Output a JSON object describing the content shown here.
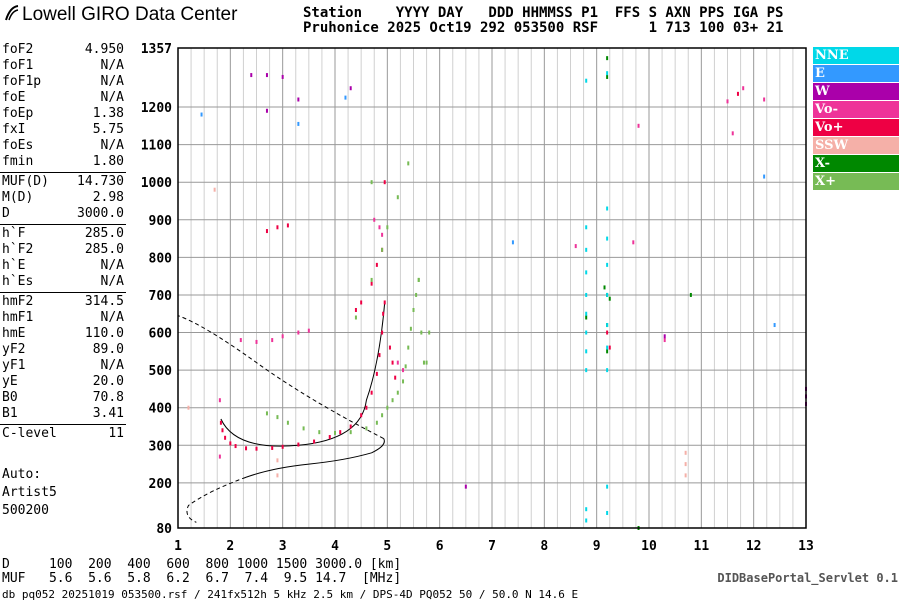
{
  "app": {
    "title": "Lowell GIRO Data Center",
    "portal": "DIDBasePortal_Servlet 0.1"
  },
  "header": {
    "line1": "Station    YYYY DAY   DDD HHMMSS P1  FFS S AXN PPS IGA PS",
    "line2": "Pruhonice 2025 Oct19 292 053500 RSF      1 713 100 03+ 21"
  },
  "params": [
    {
      "key": "foF2",
      "value": "4.950"
    },
    {
      "key": "foF1",
      "value": "N/A"
    },
    {
      "key": "foF1p",
      "value": "N/A"
    },
    {
      "key": "foE",
      "value": "N/A"
    },
    {
      "key": "foEp",
      "value": "1.38"
    },
    {
      "key": "fxI",
      "value": "5.75"
    },
    {
      "key": "foEs",
      "value": "N/A"
    },
    {
      "key": "fmin",
      "value": "1.80"
    },
    {
      "key": "MUF(D)",
      "value": "14.730"
    },
    {
      "key": "M(D)",
      "value": "2.98"
    },
    {
      "key": "D",
      "value": "3000.0"
    },
    {
      "key": "h`F",
      "value": "285.0"
    },
    {
      "key": "h`F2",
      "value": "285.0"
    },
    {
      "key": "h`E",
      "value": "N/A"
    },
    {
      "key": "h`Es",
      "value": "N/A"
    },
    {
      "key": "hmF2",
      "value": "314.5"
    },
    {
      "key": "hmF1",
      "value": "N/A"
    },
    {
      "key": "hmE",
      "value": "110.0"
    },
    {
      "key": "yF2",
      "value": "89.0"
    },
    {
      "key": "yF1",
      "value": "N/A"
    },
    {
      "key": "yE",
      "value": "20.0"
    },
    {
      "key": "B0",
      "value": "70.8"
    },
    {
      "key": "B1",
      "value": "3.41"
    },
    {
      "key": "C-level",
      "value": "11"
    }
  ],
  "auto": {
    "line1": "Auto:",
    "line2": "Artist5",
    "line3": "500200"
  },
  "legend": [
    {
      "label": "NNE",
      "color": "#00d8e8"
    },
    {
      "label": "E",
      "color": "#3399ff"
    },
    {
      "label": "W",
      "color": "#aa00aa"
    },
    {
      "label": "Vo-",
      "color": "#ee3399"
    },
    {
      "label": "Vo+",
      "color": "#ee0044"
    },
    {
      "label": "SSW",
      "color": "#f5b0a8"
    },
    {
      "label": "X-",
      "color": "#008800"
    },
    {
      "label": "X+",
      "color": "#77bb55"
    }
  ],
  "dmuf": {
    "line1": "D     100  200  400  600  800 1000 1500 3000.0 [km]",
    "line2": "MUF   5.6  5.6  5.8  6.2  6.7  7.4  9.5 14.7  [MHz]"
  },
  "footer": "db pq052 20251019 053500.rsf / 241fx512h 5 kHz 2.5 km / DPS-4D PQ052 50 / 50.0 N 14.6 E",
  "chart_data": {
    "type": "scatter",
    "xlim": [
      1,
      13
    ],
    "ylim": [
      80,
      1357
    ],
    "x_ticks": [
      1,
      2,
      3,
      4,
      5,
      6,
      7,
      8,
      9,
      10,
      11,
      12,
      13
    ],
    "y_ticks": [
      80,
      200,
      300,
      400,
      500,
      600,
      700,
      800,
      900,
      1000,
      1100,
      1200,
      1357
    ],
    "grid": true,
    "series": [
      {
        "name": "Vo+",
        "color": "#ee0044",
        "points": [
          [
            1.82,
            360
          ],
          [
            1.85,
            340
          ],
          [
            1.9,
            320
          ],
          [
            2.0,
            305
          ],
          [
            2.1,
            298
          ],
          [
            2.3,
            292
          ],
          [
            2.5,
            291
          ],
          [
            2.8,
            293
          ],
          [
            3.0,
            296
          ],
          [
            3.3,
            302
          ],
          [
            3.6,
            310
          ],
          [
            3.9,
            322
          ],
          [
            4.1,
            335
          ],
          [
            4.3,
            350
          ],
          [
            4.5,
            380
          ],
          [
            4.6,
            400
          ],
          [
            4.7,
            440
          ],
          [
            4.8,
            490
          ],
          [
            4.85,
            540
          ],
          [
            4.9,
            600
          ],
          [
            4.92,
            650
          ],
          [
            4.95,
            680
          ],
          [
            5.05,
            560
          ],
          [
            5.1,
            520
          ],
          [
            5.15,
            480
          ],
          [
            4.95,
            1000
          ],
          [
            2.7,
            870
          ],
          [
            2.9,
            880
          ],
          [
            3.1,
            885
          ],
          [
            4.4,
            660
          ],
          [
            4.5,
            680
          ],
          [
            4.7,
            730
          ],
          [
            4.8,
            780
          ],
          [
            4.9,
            820
          ],
          [
            9.2,
            600
          ],
          [
            9.25,
            560
          ],
          [
            11.7,
            1235
          ]
        ]
      },
      {
        "name": "Vo-",
        "color": "#ee3399",
        "points": [
          [
            2.2,
            580
          ],
          [
            2.5,
            575
          ],
          [
            2.8,
            580
          ],
          [
            3.0,
            590
          ],
          [
            3.3,
            600
          ],
          [
            3.5,
            605
          ],
          [
            4.75,
            900
          ],
          [
            4.85,
            880
          ],
          [
            4.9,
            860
          ],
          [
            5.2,
            520
          ],
          [
            5.3,
            500
          ],
          [
            8.6,
            830
          ],
          [
            9.7,
            840
          ],
          [
            9.8,
            1150
          ],
          [
            10.3,
            580
          ],
          [
            11.5,
            1215
          ],
          [
            11.6,
            1130
          ],
          [
            11.8,
            1250
          ],
          [
            12.2,
            1220
          ],
          [
            1.8,
            270
          ],
          [
            1.8,
            420
          ]
        ]
      },
      {
        "name": "X+",
        "color": "#77bb55",
        "points": [
          [
            2.7,
            385
          ],
          [
            2.9,
            375
          ],
          [
            3.1,
            360
          ],
          [
            3.4,
            345
          ],
          [
            3.7,
            335
          ],
          [
            4.0,
            333
          ],
          [
            4.3,
            335
          ],
          [
            4.6,
            345
          ],
          [
            4.8,
            360
          ],
          [
            4.9,
            380
          ],
          [
            5.0,
            400
          ],
          [
            5.1,
            420
          ],
          [
            5.2,
            440
          ],
          [
            5.3,
            470
          ],
          [
            5.35,
            510
          ],
          [
            5.4,
            560
          ],
          [
            5.45,
            610
          ],
          [
            5.5,
            660
          ],
          [
            5.55,
            700
          ],
          [
            5.6,
            740
          ],
          [
            5.65,
            600
          ],
          [
            5.7,
            520
          ],
          [
            4.4,
            640
          ],
          [
            4.7,
            740
          ],
          [
            4.9,
            820
          ],
          [
            5.0,
            880
          ],
          [
            5.2,
            960
          ],
          [
            5.4,
            1050
          ],
          [
            4.7,
            1000
          ],
          [
            5.6,
            740
          ],
          [
            5.75,
            520
          ],
          [
            5.8,
            600
          ]
        ]
      },
      {
        "name": "X-",
        "color": "#008800",
        "points": [
          [
            9.2,
            700
          ],
          [
            9.25,
            690
          ],
          [
            9.2,
            620
          ],
          [
            9.2,
            550
          ],
          [
            9.15,
            720
          ],
          [
            9.2,
            1280
          ],
          [
            9.2,
            1330
          ],
          [
            8.8,
            640
          ],
          [
            10.8,
            700
          ],
          [
            9.8,
            80
          ]
        ]
      },
      {
        "name": "NNE",
        "color": "#00d8e8",
        "points": [
          [
            8.8,
            880
          ],
          [
            8.8,
            820
          ],
          [
            8.8,
            760
          ],
          [
            8.8,
            700
          ],
          [
            8.8,
            650
          ],
          [
            8.8,
            600
          ],
          [
            8.8,
            550
          ],
          [
            8.8,
            500
          ],
          [
            9.2,
            930
          ],
          [
            9.2,
            850
          ],
          [
            9.2,
            780
          ],
          [
            9.2,
            700
          ],
          [
            9.2,
            620
          ],
          [
            9.2,
            560
          ],
          [
            9.2,
            500
          ],
          [
            8.8,
            130
          ],
          [
            8.8,
            100
          ],
          [
            9.2,
            190
          ],
          [
            9.2,
            120
          ],
          [
            8.8,
            1270
          ],
          [
            9.2,
            1290
          ]
        ]
      },
      {
        "name": "E",
        "color": "#3399ff",
        "points": [
          [
            1.45,
            1180
          ],
          [
            3.3,
            1155
          ],
          [
            4.2,
            1225
          ],
          [
            12.2,
            1015
          ],
          [
            7.4,
            840
          ],
          [
            12.4,
            620
          ]
        ]
      },
      {
        "name": "W",
        "color": "#aa00aa",
        "points": [
          [
            2.4,
            1285
          ],
          [
            2.7,
            1285
          ],
          [
            2.7,
            1190
          ],
          [
            3.0,
            1280
          ],
          [
            3.3,
            1220
          ],
          [
            4.3,
            1250
          ],
          [
            13.0,
            450
          ],
          [
            13.0,
            430
          ],
          [
            13.0,
            410
          ],
          [
            10.3,
            590
          ],
          [
            6.5,
            190
          ]
        ]
      },
      {
        "name": "SSW",
        "color": "#f5b0a8",
        "points": [
          [
            10.7,
            220
          ],
          [
            10.7,
            250
          ],
          [
            10.7,
            280
          ],
          [
            1.2,
            400
          ],
          [
            1.7,
            980
          ],
          [
            2.9,
            260
          ],
          [
            2.9,
            220
          ]
        ]
      }
    ]
  }
}
